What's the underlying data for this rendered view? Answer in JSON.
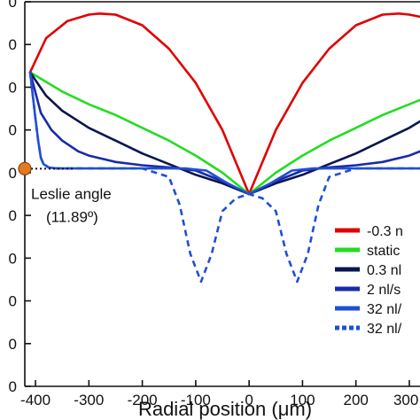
{
  "chart_data": {
    "type": "line",
    "xlabel": "Radial position  (μm)",
    "ylabel": "",
    "xlim": [
      -420,
      320
    ],
    "ylim": [
      -90,
      90
    ],
    "grid": false,
    "legend_position": "right",
    "x_ticks": [
      -400,
      -300,
      -200,
      -100,
      0,
      100,
      200,
      300
    ],
    "x_tick_labels": [
      "-400",
      "-300",
      "-200",
      "-100",
      "0",
      "100",
      "200",
      "300"
    ],
    "y_ticks": [
      90,
      70,
      50,
      30,
      10,
      -10,
      -30,
      -50,
      -70,
      -90
    ],
    "y_tick_labels": [
      "0",
      "0",
      "0",
      "0",
      "0",
      "0",
      "0",
      "0",
      "0",
      "0"
    ],
    "annotation": {
      "line1": "Leslie angle",
      "line2": "(11.89º)",
      "x": -420,
      "y": 11.89
    },
    "series": [
      {
        "name": "-0.3 n",
        "color": "#e00000",
        "dashed": false,
        "x": [
          -410,
          -380,
          -340,
          -300,
          -280,
          -250,
          -200,
          -150,
          -100,
          -50,
          0,
          50,
          100,
          150,
          200,
          250,
          280,
          300,
          320
        ],
        "y": [
          57,
          73,
          81,
          84,
          84.5,
          84,
          79,
          68,
          52,
          30,
          0,
          30,
          52,
          68,
          79,
          84,
          84.5,
          84,
          83
        ]
      },
      {
        "name": "static",
        "color": "#22dd22",
        "dashed": false,
        "x": [
          -410,
          -350,
          -300,
          -250,
          -200,
          -150,
          -100,
          -50,
          0,
          50,
          100,
          150,
          200,
          250,
          300,
          320
        ],
        "y": [
          57,
          48,
          42,
          37,
          31,
          25,
          18,
          10,
          0,
          10,
          18,
          25,
          31,
          37,
          42,
          44
        ]
      },
      {
        "name": "0.3 nl",
        "color": "#0a1650",
        "dashed": false,
        "x": [
          -410,
          -380,
          -350,
          -300,
          -250,
          -200,
          -150,
          -100,
          -50,
          0,
          50,
          100,
          150,
          200,
          250,
          300,
          320
        ],
        "y": [
          57,
          46,
          39,
          31,
          25,
          19,
          14,
          9,
          5,
          0,
          5,
          9,
          14,
          19,
          25,
          31,
          34
        ]
      },
      {
        "name": "2 nl/s",
        "color": "#1a2aa8",
        "dashed": false,
        "x": [
          -410,
          -390,
          -370,
          -350,
          -320,
          -300,
          -250,
          -200,
          -150,
          -100,
          -50,
          0,
          50,
          100,
          150,
          200,
          250,
          300,
          320
        ],
        "y": [
          57,
          38,
          30,
          25,
          20,
          18,
          15,
          13.5,
          12.5,
          11,
          6,
          0,
          6,
          11,
          12.5,
          13.5,
          15,
          18,
          20
        ]
      },
      {
        "name": "32 nl/",
        "color": "#1f4fd6",
        "dashed": false,
        "x": [
          -410,
          -400,
          -395,
          -390,
          -385,
          -375,
          -360,
          -300,
          -200,
          -120,
          -80,
          -40,
          0,
          40,
          80,
          120,
          200,
          300,
          320
        ],
        "y": [
          57,
          35,
          25,
          17,
          14,
          12.4,
          12,
          12,
          12,
          12,
          11,
          5,
          0,
          5,
          11,
          12,
          12,
          12,
          12
        ]
      },
      {
        "name": "32 nl/",
        "color": "#1f4fd6",
        "dashed": true,
        "x": [
          -410,
          -400,
          -395,
          -390,
          -385,
          -375,
          -360,
          -300,
          -200,
          -150,
          -130,
          -110,
          -90,
          -70,
          -50,
          -25,
          0,
          25,
          50,
          70,
          90,
          110,
          130,
          150,
          200,
          300,
          320
        ],
        "y": [
          57,
          35,
          25,
          17,
          14,
          12.4,
          12,
          12,
          12,
          8,
          -5,
          -28,
          -41,
          -28,
          -8,
          -2,
          0,
          -2,
          -8,
          -28,
          -41,
          -28,
          -5,
          8,
          12,
          12,
          12
        ]
      }
    ]
  }
}
